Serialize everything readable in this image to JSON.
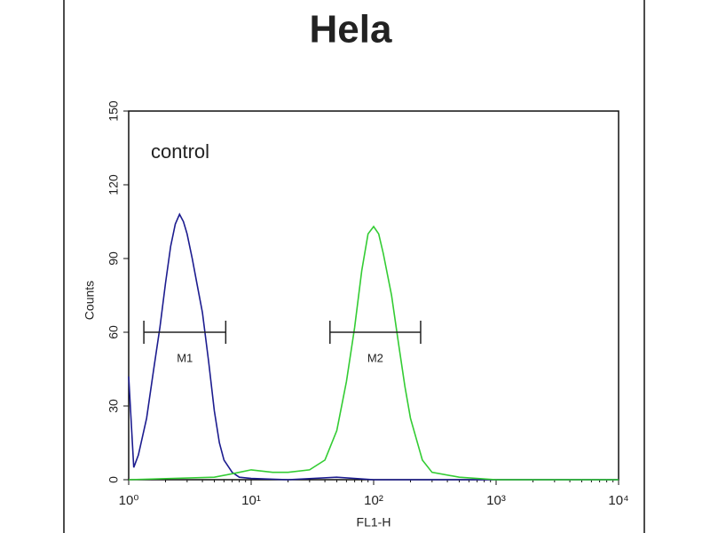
{
  "chart_data": {
    "type": "line",
    "title": "Hela",
    "annotation": "control",
    "x_label": "FL1-H",
    "y_label": "Counts",
    "x_log": true,
    "xlim": [
      1,
      10000
    ],
    "xticks": [
      {
        "value": 1,
        "label": "10⁰"
      },
      {
        "value": 10,
        "label": "10¹"
      },
      {
        "value": 100,
        "label": "10²"
      },
      {
        "value": 1000,
        "label": "10³"
      },
      {
        "value": 10000,
        "label": "10⁴"
      }
    ],
    "ylim": [
      0,
      150
    ],
    "yticks": [
      0,
      30,
      60,
      90,
      120,
      150
    ],
    "series": [
      {
        "color": "#1c1c8f",
        "x": [
          1,
          1.1,
          1.2,
          1.4,
          1.6,
          1.8,
          2.0,
          2.2,
          2.4,
          2.6,
          2.8,
          3.0,
          3.3,
          3.6,
          4.0,
          4.5,
          5,
          5.5,
          6,
          7,
          8,
          10,
          20,
          50,
          100,
          200,
          500,
          1000,
          10000
        ],
        "values": [
          42,
          5,
          10,
          25,
          45,
          62,
          80,
          95,
          104,
          108,
          105,
          100,
          90,
          80,
          68,
          48,
          28,
          15,
          8,
          3,
          1,
          0.5,
          0,
          1,
          0,
          0,
          0,
          0,
          0
        ]
      },
      {
        "color": "#33cc33",
        "x": [
          1,
          5,
          8,
          10,
          15,
          20,
          30,
          40,
          50,
          60,
          70,
          80,
          90,
          100,
          110,
          120,
          140,
          160,
          180,
          200,
          250,
          300,
          500,
          1000,
          10000
        ],
        "values": [
          0,
          1,
          3,
          4,
          3,
          3,
          4,
          8,
          20,
          40,
          62,
          85,
          100,
          103,
          100,
          92,
          75,
          55,
          38,
          25,
          8,
          3,
          1,
          0,
          0
        ]
      }
    ],
    "gates": [
      {
        "label": "M1",
        "range": [
          1.33,
          6.2
        ],
        "y": 60
      },
      {
        "label": "M2",
        "range": [
          44,
          242
        ],
        "y": 60
      }
    ]
  }
}
